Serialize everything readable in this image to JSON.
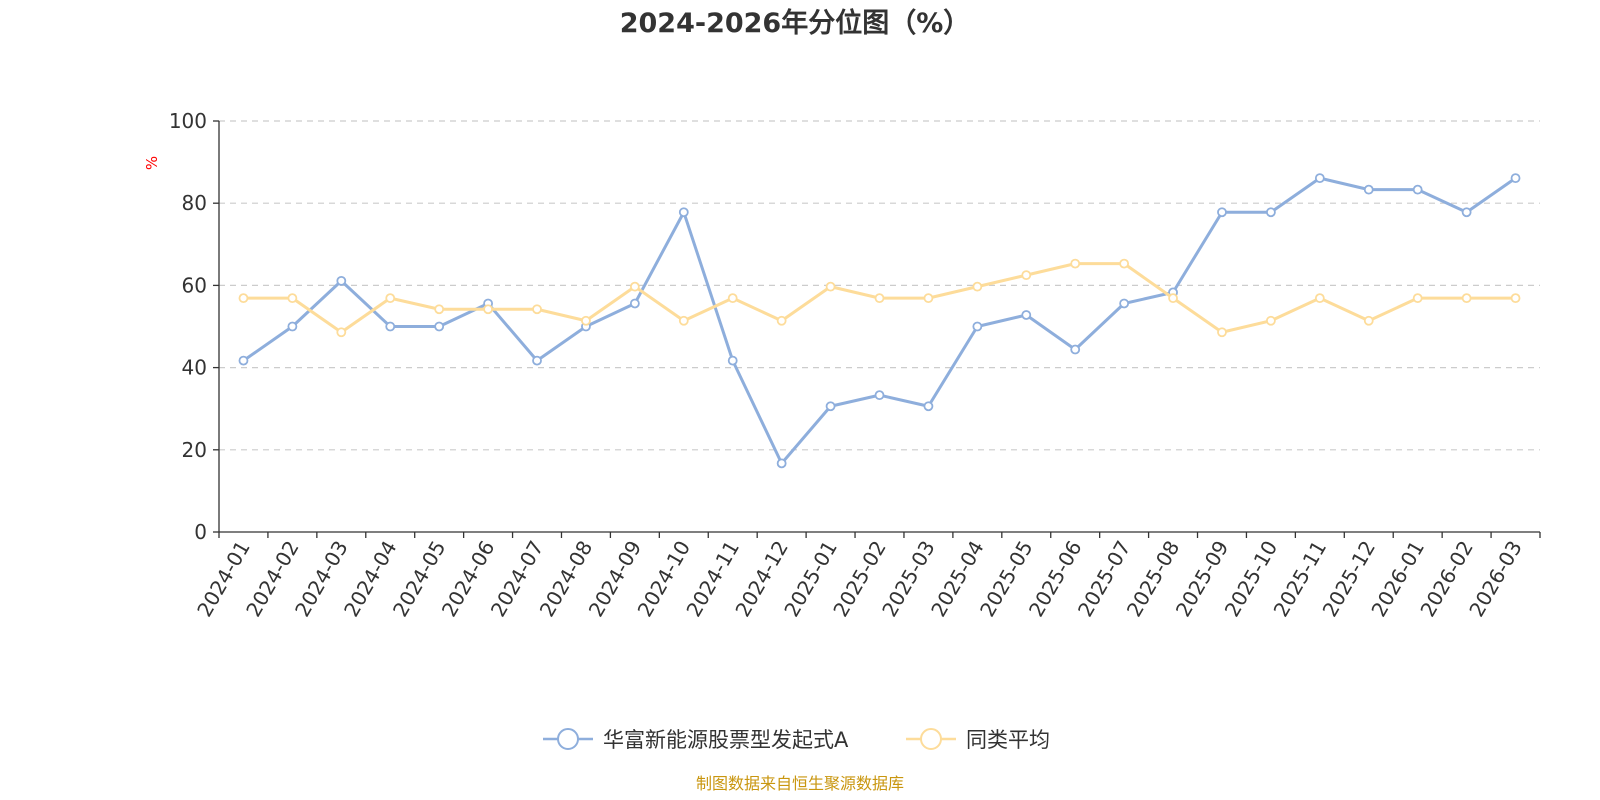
{
  "chart_data": {
    "type": "line",
    "title": "2024-2026年分位图（%）",
    "ylabel": "%",
    "xlabel": "",
    "ylim": [
      0,
      100
    ],
    "yticks": [
      0,
      20,
      40,
      60,
      80,
      100
    ],
    "grid": true,
    "legend_position": "bottom-center",
    "categories": [
      "2024-01",
      "2024-02",
      "2024-03",
      "2024-04",
      "2024-05",
      "2024-06",
      "2024-07",
      "2024-08",
      "2024-09",
      "2024-10",
      "2024-11",
      "2024-12",
      "2025-01",
      "2025-02",
      "2025-03",
      "2025-04",
      "2025-05",
      "2025-06",
      "2025-07",
      "2025-08",
      "2025-09",
      "2025-10",
      "2025-11",
      "2025-12",
      "2026-01",
      "2026-02",
      "2026-03"
    ],
    "series": [
      {
        "name": "华富新能源股票型发起式A",
        "color": "#8eaedc",
        "values": [
          41.7,
          50.0,
          61.1,
          50.0,
          50.0,
          55.6,
          41.7,
          50.0,
          55.6,
          77.8,
          41.7,
          16.7,
          30.6,
          33.3,
          30.6,
          50.0,
          52.8,
          44.4,
          55.6,
          58.3,
          77.8,
          77.8,
          86.1,
          83.3,
          83.3,
          77.8,
          86.1
        ]
      },
      {
        "name": "同类平均",
        "color": "#fddc9a",
        "values": [
          56.9,
          56.9,
          48.6,
          56.9,
          54.2,
          54.2,
          54.2,
          51.4,
          59.7,
          51.4,
          56.9,
          51.4,
          59.7,
          56.9,
          56.9,
          59.7,
          62.5,
          65.3,
          65.3,
          56.9,
          48.6,
          51.4,
          56.9,
          51.4,
          56.9,
          56.9,
          56.9
        ]
      }
    ]
  },
  "colors": {
    "axis": "#333333",
    "grid": "#cccccc",
    "unit": "#ff0000",
    "source": "#c9960f"
  },
  "source": "制图数据来自恒生聚源数据库"
}
